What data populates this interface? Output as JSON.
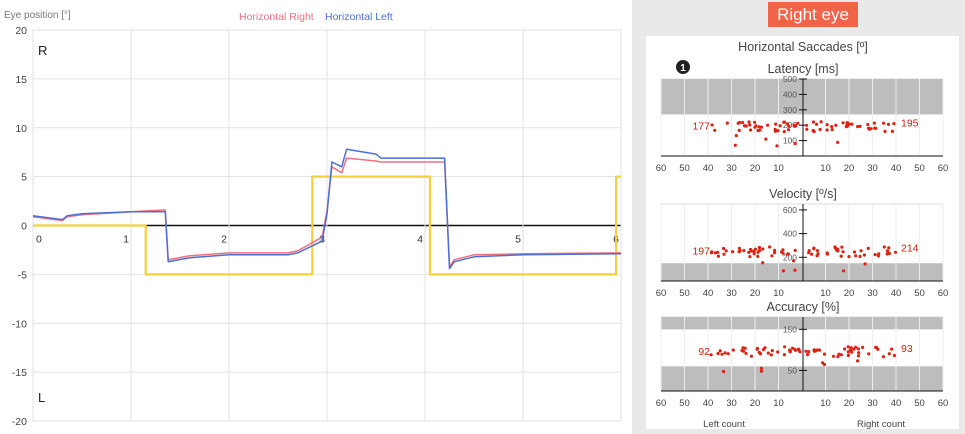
{
  "main_chart": {
    "y_axis_title": "Eye position [°]",
    "legend": [
      {
        "label": "Horizontal Right",
        "color": "#f07080"
      },
      {
        "label": "Horizontal Left",
        "color": "#4b6fd8"
      }
    ],
    "y_ticks": [
      "20",
      "15",
      "10",
      "5",
      "0",
      "-5",
      "-10",
      "-15",
      "-20"
    ],
    "x_ticks": [
      "0",
      "1",
      "2",
      "3",
      "4",
      "5",
      "6"
    ],
    "right_marker": "R",
    "left_marker": "L",
    "stimulus_color": "#f5d03a",
    "chart_data": {
      "type": "line",
      "xlim": [
        0,
        6
      ],
      "ylim": [
        -20,
        20
      ],
      "grid": true,
      "series": [
        {
          "name": "Horizontal Right",
          "color": "#f07080",
          "x": [
            0,
            0.3,
            0.35,
            0.5,
            1.0,
            1.35,
            1.38,
            1.6,
            2.0,
            2.6,
            2.7,
            2.95,
            3.0,
            3.05,
            3.15,
            3.2,
            3.5,
            3.55,
            4.2,
            4.25,
            4.3,
            4.5,
            5.0,
            6.0
          ],
          "y": [
            0.9,
            0.5,
            0.9,
            1.1,
            1.4,
            1.6,
            -3.5,
            -3.1,
            -2.8,
            -2.8,
            -2.6,
            -1.2,
            1.5,
            6.0,
            5.4,
            6.9,
            6.6,
            6.5,
            6.5,
            -4.2,
            -3.5,
            -3.0,
            -2.9,
            -2.8
          ]
        },
        {
          "name": "Horizontal Left",
          "color": "#4b6fd8",
          "x": [
            0,
            0.3,
            0.35,
            0.5,
            1.0,
            1.35,
            1.38,
            1.6,
            2.0,
            2.6,
            2.7,
            2.95,
            3.0,
            3.05,
            3.15,
            3.2,
            3.5,
            3.55,
            4.2,
            4.25,
            4.3,
            4.5,
            5.0,
            6.0
          ],
          "y": [
            1.0,
            0.6,
            1.0,
            1.2,
            1.4,
            1.4,
            -3.7,
            -3.3,
            -3.0,
            -3.0,
            -2.8,
            -1.6,
            1.2,
            6.5,
            6.0,
            7.8,
            7.3,
            6.9,
            6.9,
            -4.4,
            -3.7,
            -3.2,
            -3.0,
            -2.9
          ]
        },
        {
          "color": "#f5d03a",
          "x": [
            0,
            1.15,
            1.15,
            2.85,
            2.85,
            4.05,
            4.05,
            5.95,
            5.95,
            6.0
          ],
          "y": [
            0,
            0,
            -5,
            -5,
            5,
            5,
            -5,
            -5,
            5,
            5
          ]
        }
      ]
    }
  },
  "right_panel": {
    "header": "Right eye",
    "header_color": "#f26448",
    "title": "Horizontal Saccades [º]",
    "info_icon": "info-circle-icon",
    "x_ticks": [
      "60",
      "50",
      "40",
      "30",
      "20",
      "10",
      "",
      "10",
      "20",
      "30",
      "40",
      "50",
      "60"
    ],
    "left_count": "Left count",
    "right_count": "Right count",
    "plots": [
      {
        "title": "Latency [ms]",
        "left_value": "177",
        "right_value": "195",
        "y_ticks": [
          "500",
          "400",
          "300",
          "200",
          "100"
        ],
        "ylim": [
          0,
          500
        ],
        "shaded": [
          [
            270,
            500
          ]
        ]
      },
      {
        "title": "Velocity [º/s]",
        "left_value": "197",
        "right_value": "214",
        "y_ticks": [
          "600",
          "400",
          "200"
        ],
        "ylim": [
          0,
          650
        ],
        "shaded": [
          [
            0,
            150
          ]
        ]
      },
      {
        "title": "Accuracy [%]",
        "left_value": "92",
        "right_value": "93",
        "y_ticks": [
          "150",
          "50"
        ],
        "ylim": [
          0,
          180
        ],
        "shaded": [
          [
            150,
            180
          ],
          [
            0,
            60
          ]
        ]
      }
    ],
    "point_color": "#e02010"
  }
}
